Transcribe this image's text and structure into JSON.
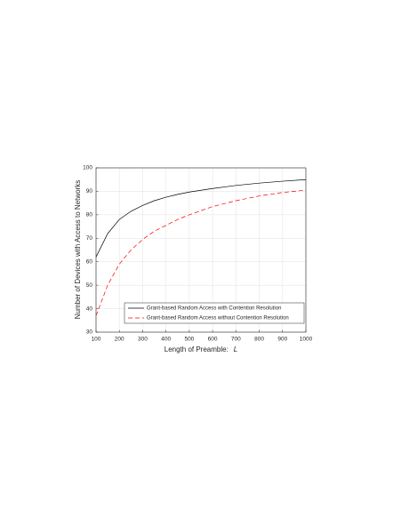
{
  "chart_data": {
    "type": "line",
    "xlabel": "Length of Preamble:",
    "xlabel_symbol": "L",
    "ylabel": "Number of Devices with Access to Networks",
    "x": [
      100,
      150,
      200,
      250,
      300,
      350,
      400,
      450,
      500,
      600,
      700,
      800,
      900,
      1000
    ],
    "series": [
      {
        "name": "Grant-based Random Access with Contention Resolution",
        "color": "#000000",
        "dash": "none",
        "values": [
          62,
          72,
          78,
          81.5,
          84,
          86,
          87.5,
          88.7,
          89.7,
          91.2,
          92.5,
          93.5,
          94.3,
          95
        ]
      },
      {
        "name": "Grant-based Random Access without Contention Resolution",
        "color": "#ff0000",
        "dash": "5 3",
        "values": [
          37,
          50,
          59,
          65,
          69.5,
          73,
          75.5,
          78,
          80,
          83.5,
          86,
          88,
          89.5,
          90.5
        ]
      }
    ],
    "xlim": [
      100,
      1000
    ],
    "xticks": [
      100,
      200,
      300,
      400,
      500,
      600,
      700,
      800,
      900,
      1000
    ],
    "ylim": [
      30,
      100
    ],
    "yticks": [
      30,
      40,
      50,
      60,
      70,
      80,
      90,
      100
    ],
    "grid": true,
    "legend": "lower right"
  }
}
